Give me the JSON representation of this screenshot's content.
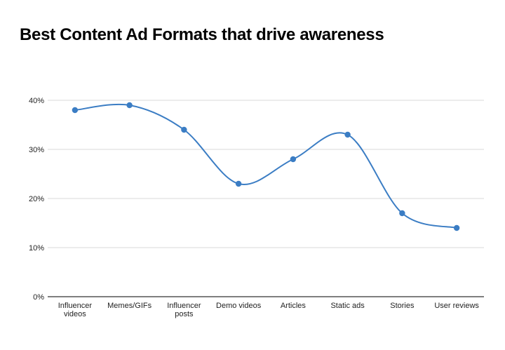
{
  "chart_data": {
    "type": "line",
    "title": "Best Content Ad Formats that drive awareness",
    "xlabel": "",
    "ylabel": "",
    "categories": [
      "Influencer videos",
      "Memes/GIFs",
      "Influencer posts",
      "Demo videos",
      "Articles",
      "Static ads",
      "Stories",
      "User reviews"
    ],
    "category_lines": [
      [
        "Influencer",
        "videos"
      ],
      [
        "Memes/GIFs"
      ],
      [
        "Influencer",
        "posts"
      ],
      [
        "Demo videos"
      ],
      [
        "Articles"
      ],
      [
        "Static ads"
      ],
      [
        "Stories"
      ],
      [
        "User reviews"
      ]
    ],
    "series": [
      {
        "values": [
          38,
          39,
          34,
          23,
          28,
          33,
          17,
          14
        ]
      }
    ],
    "ylim": [
      0,
      40
    ],
    "yticks": [
      0,
      10,
      20,
      30,
      40
    ],
    "ytick_labels": [
      "0%",
      "10%",
      "20%",
      "30%",
      "40%"
    ],
    "grid": true,
    "smooth": true,
    "legend": "none",
    "colors": {
      "line": "#3b7dc4",
      "grid": "#d9d9d9",
      "axis": "#333333"
    }
  }
}
